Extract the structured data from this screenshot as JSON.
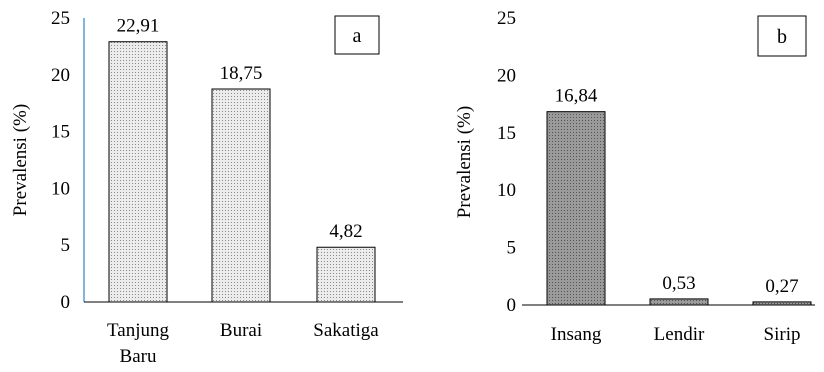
{
  "chart_data": [
    {
      "type": "bar",
      "panel_label": "a",
      "categories": [
        [
          "Tanjung",
          "Baru"
        ],
        [
          "Burai"
        ],
        [
          "Sakatiga"
        ]
      ],
      "values": [
        22.91,
        18.75,
        4.82
      ],
      "value_labels": [
        "22,91",
        "18,75",
        "4,82"
      ],
      "ylabel": "Prevalensi (%)",
      "xlabel": "",
      "ylim": [
        0,
        25
      ],
      "yticks": [
        0,
        5,
        10,
        15,
        20,
        25
      ],
      "bar_color": "#dcdcdc",
      "bar_pattern": "dotted",
      "grid": false
    },
    {
      "type": "bar",
      "panel_label": "b",
      "categories": [
        [
          "Insang"
        ],
        [
          "Lendir"
        ],
        [
          "Sirip"
        ]
      ],
      "values": [
        16.84,
        0.53,
        0.27
      ],
      "value_labels": [
        "16,84",
        "0,53",
        "0,27"
      ],
      "ylabel": "Prevalensi (%)",
      "xlabel": "",
      "ylim": [
        0,
        25
      ],
      "yticks": [
        0,
        5,
        10,
        15,
        20,
        25
      ],
      "bar_color": "#8c8c8c",
      "bar_pattern": "dotted",
      "grid": false
    }
  ]
}
